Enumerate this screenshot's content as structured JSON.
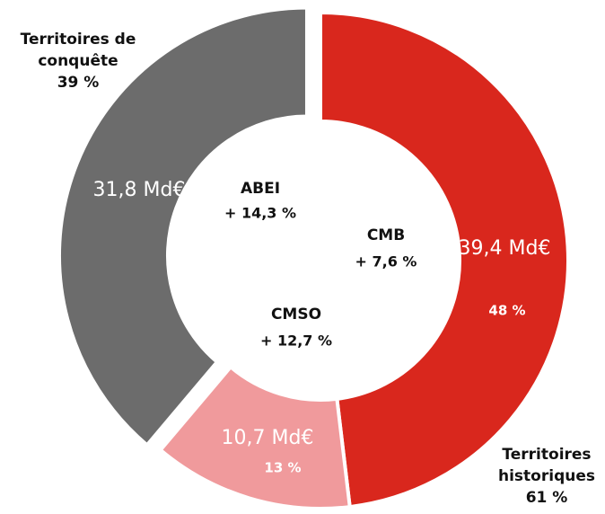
{
  "chart_data": {
    "type": "donut",
    "categories": [
      "CMB",
      "CMSO",
      "ABEI"
    ],
    "values": [
      39.4,
      10.7,
      31.8
    ],
    "value_labels": [
      "39,4 Md€",
      "10,7 Md€",
      "31,8 Md€"
    ],
    "shares": [
      48,
      13,
      39
    ],
    "share_labels": [
      "48 %",
      "13 %",
      null
    ],
    "growth": [
      7.6,
      12.7,
      14.3
    ],
    "growth_labels": [
      "+ 7,6 %",
      "+ 12,7 %",
      "+ 14,3 %"
    ],
    "colors": [
      "#d9271d",
      "#f09a9c",
      "#6c6c6c"
    ],
    "exploded": [
      false,
      false,
      true
    ],
    "groups": [
      {
        "name": "Territoires historiques",
        "value": 61,
        "value_label": "61 %"
      },
      {
        "name": "Territoires de conquête",
        "value": 39,
        "value_label": "39 %"
      }
    ]
  }
}
